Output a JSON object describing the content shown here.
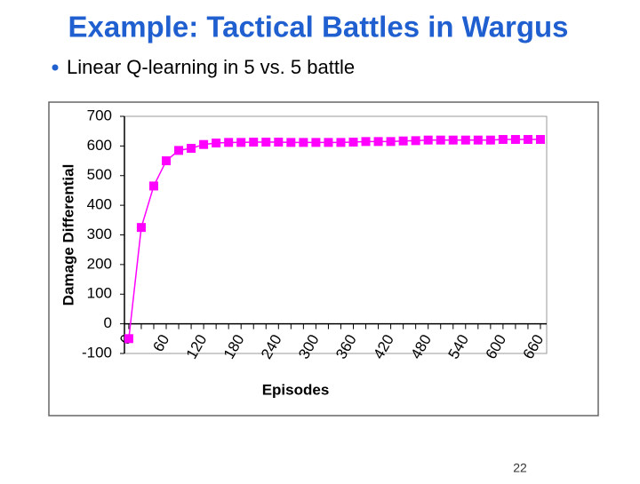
{
  "slide": {
    "title": "Example: Tactical Battles in Wargus",
    "bullet": "Linear Q-learning in 5 vs. 5 battle",
    "page_number": "22"
  },
  "chart_data": {
    "type": "line",
    "x_label": "Episodes",
    "y_label": "Damage Differential",
    "x": [
      0,
      20,
      40,
      60,
      80,
      100,
      120,
      140,
      160,
      180,
      200,
      220,
      240,
      260,
      280,
      300,
      320,
      340,
      360,
      380,
      400,
      420,
      440,
      460,
      480,
      500,
      520,
      540,
      560,
      580,
      600,
      620,
      640,
      660
    ],
    "series": [
      {
        "color": "#ff00ff",
        "values": [
          -50,
          325,
          465,
          550,
          585,
          592,
          605,
          610,
          612,
          612,
          613,
          613,
          613,
          612,
          612,
          612,
          612,
          612,
          613,
          615,
          615,
          615,
          617,
          618,
          620,
          620,
          620,
          620,
          620,
          620,
          622,
          622,
          622,
          622
        ]
      }
    ],
    "xlim": [
      -7,
      670
    ],
    "xticks": [
      0,
      60,
      120,
      180,
      240,
      300,
      360,
      420,
      480,
      540,
      600,
      660
    ],
    "ylim": [
      -100,
      700
    ],
    "yticks": [
      -100,
      0,
      100,
      200,
      300,
      400,
      500,
      600,
      700
    ]
  }
}
